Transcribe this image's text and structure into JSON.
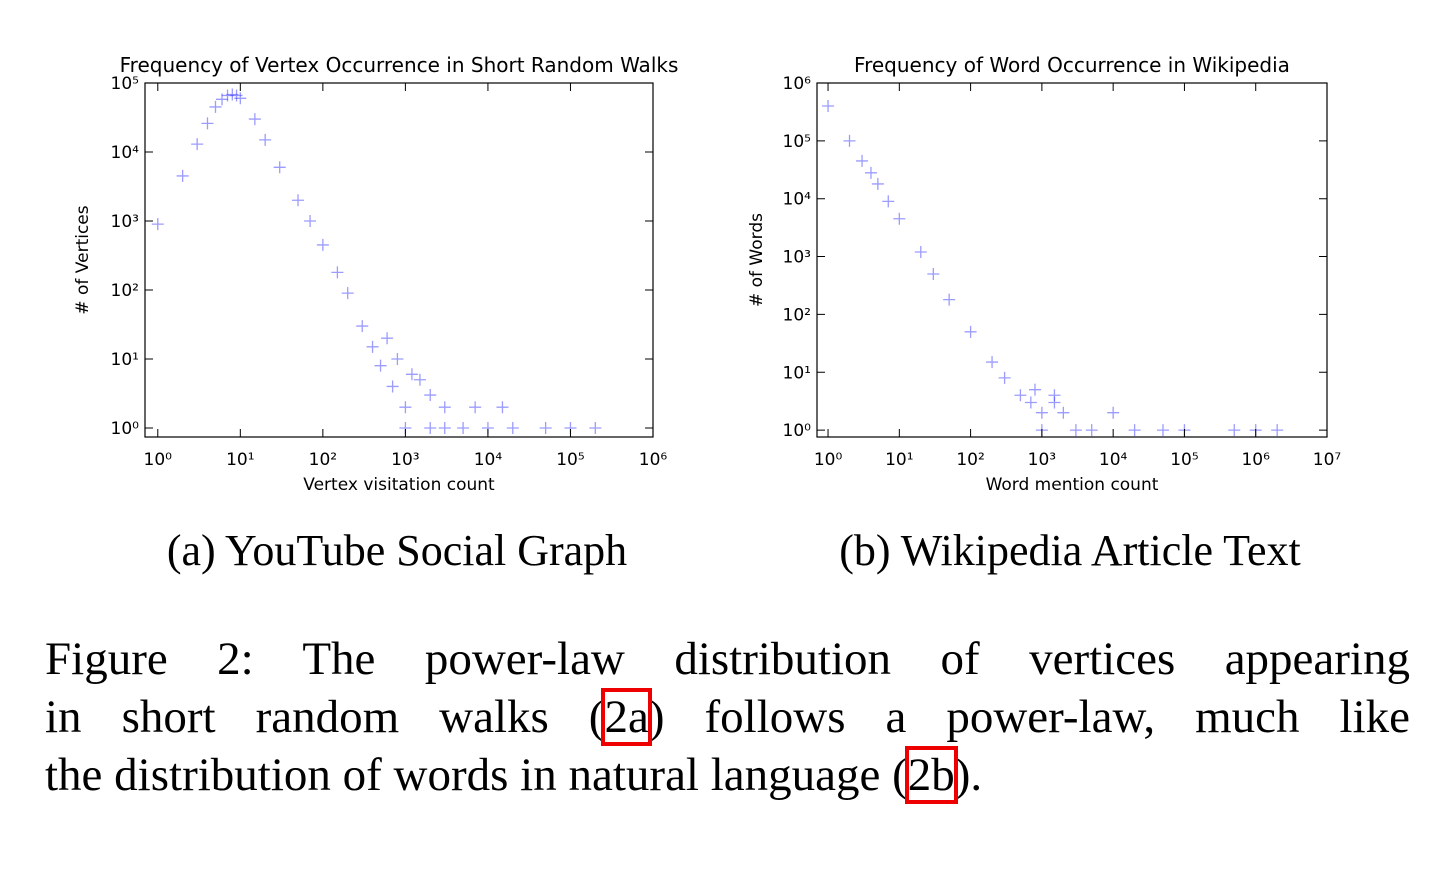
{
  "chart_data": [
    {
      "type": "scatter",
      "title": "Frequency of Vertex Occurrence in Short Random Walks",
      "xlabel": "Vertex visitation count",
      "ylabel": "# of Vertices",
      "caption": "(a) YouTube Social Graph",
      "xscale": "log",
      "yscale": "log",
      "color": "#3a3aff",
      "marker": "+",
      "xlim": [
        0.7,
        1000000
      ],
      "ylim": [
        0.74,
        100000
      ],
      "xticks": [
        {
          "value": 1,
          "label": "10⁰"
        },
        {
          "value": 10,
          "label": "10¹"
        },
        {
          "value": 100,
          "label": "10²"
        },
        {
          "value": 1000,
          "label": "10³"
        },
        {
          "value": 10000,
          "label": "10⁴"
        },
        {
          "value": 100000,
          "label": "10⁵"
        },
        {
          "value": 1000000,
          "label": "10⁶"
        }
      ],
      "yticks": [
        {
          "value": 1,
          "label": "10⁰"
        },
        {
          "value": 10,
          "label": "10¹"
        },
        {
          "value": 100,
          "label": "10²"
        },
        {
          "value": 1000,
          "label": "10³"
        },
        {
          "value": 10000,
          "label": "10⁴"
        },
        {
          "value": 100000,
          "label": "10⁵"
        }
      ],
      "x": [
        1,
        2,
        3,
        4,
        5,
        6,
        7,
        8,
        9,
        10,
        15,
        20,
        30,
        50,
        70,
        100,
        150,
        200,
        300,
        400,
        500,
        600,
        700,
        800,
        1000,
        1000,
        1200,
        1500,
        2000,
        2000,
        3000,
        3000,
        5000,
        7000,
        10000,
        15000,
        20000,
        50000,
        100000,
        200000
      ],
      "values": [
        900,
        4500,
        13000,
        26000,
        45000,
        58000,
        66000,
        68000,
        66000,
        60000,
        30000,
        15000,
        6000,
        2000,
        1000,
        450,
        180,
        90,
        30,
        15,
        8,
        20,
        4,
        10,
        2,
        1,
        6,
        5,
        3,
        1,
        2,
        1,
        1,
        2,
        1,
        2,
        1,
        1,
        1,
        1
      ]
    },
    {
      "type": "scatter",
      "title": "Frequency of Word Occurrence in Wikipedia",
      "xlabel": "Word mention count",
      "ylabel": "# of Words",
      "caption": "(b) Wikipedia Article Text",
      "xscale": "log",
      "yscale": "log",
      "color": "#3a3aff",
      "marker": "+",
      "xlim": [
        0.7,
        10000000
      ],
      "ylim": [
        0.76,
        1000000
      ],
      "xticks": [
        {
          "value": 1,
          "label": "10⁰"
        },
        {
          "value": 10,
          "label": "10¹"
        },
        {
          "value": 100,
          "label": "10²"
        },
        {
          "value": 1000,
          "label": "10³"
        },
        {
          "value": 10000,
          "label": "10⁴"
        },
        {
          "value": 100000,
          "label": "10⁵"
        },
        {
          "value": 1000000,
          "label": "10⁶"
        },
        {
          "value": 10000000,
          "label": "10⁷"
        }
      ],
      "yticks": [
        {
          "value": 1,
          "label": "10⁰"
        },
        {
          "value": 10,
          "label": "10¹"
        },
        {
          "value": 100,
          "label": "10²"
        },
        {
          "value": 1000,
          "label": "10³"
        },
        {
          "value": 10000,
          "label": "10⁴"
        },
        {
          "value": 100000,
          "label": "10⁵"
        },
        {
          "value": 1000000,
          "label": "10⁶"
        }
      ],
      "x": [
        1,
        2,
        3,
        4,
        5,
        7,
        10,
        20,
        30,
        50,
        100,
        200,
        300,
        500,
        700,
        800,
        1000,
        1000,
        1500,
        1500,
        2000,
        3000,
        5000,
        10000,
        20000,
        50000,
        100000,
        500000,
        1000000,
        2000000
      ],
      "values": [
        400000,
        100000,
        45000,
        28000,
        18000,
        9000,
        4500,
        1200,
        500,
        180,
        50,
        15,
        8,
        4,
        3,
        5,
        2,
        1,
        3,
        4,
        2,
        1,
        1,
        2,
        1,
        1,
        1,
        1,
        1,
        1
      ]
    }
  ],
  "figure_caption": {
    "lines": [
      [
        "Figure 2: The power-law distribution of vertices appearing"
      ],
      [
        "in short random walks (",
        "2a",
        ") follows a power-law, much like"
      ],
      [
        "the distribution of words in natural language (",
        "2b",
        ")."
      ]
    ]
  }
}
